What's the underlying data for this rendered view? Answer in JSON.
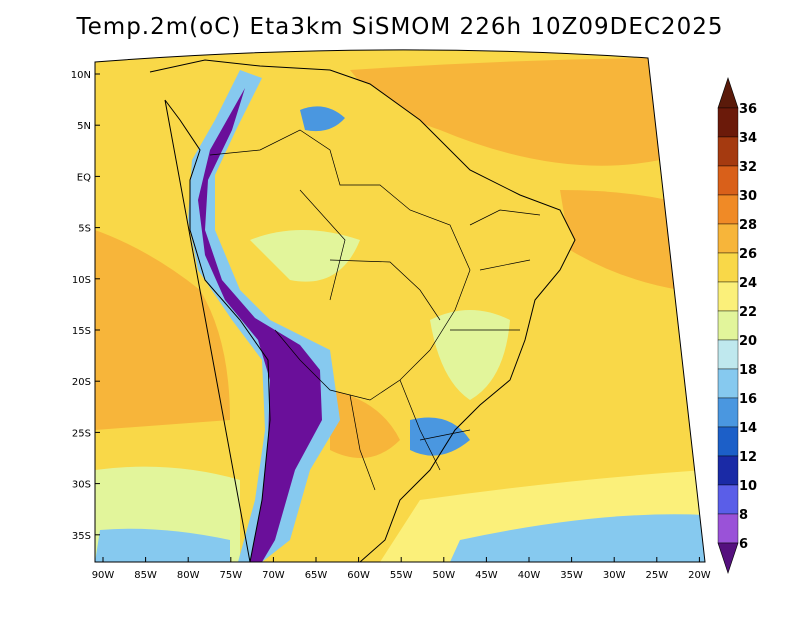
{
  "title": "Temp.2m(oC) Eta3km SiSMOM 226h 10Z09DEC2025",
  "lat_labels": [
    "10N",
    "5N",
    "EQ",
    "5S",
    "10S",
    "15S",
    "20S",
    "25S",
    "30S",
    "35S"
  ],
  "lon_labels": [
    "90W",
    "85W",
    "80W",
    "75W",
    "70W",
    "65W",
    "60W",
    "55W",
    "50W",
    "45W",
    "40W",
    "35W",
    "30W",
    "25W",
    "20W"
  ],
  "colorbar": {
    "labels": [
      "36",
      "34",
      "32",
      "30",
      "28",
      "26",
      "24",
      "22",
      "20",
      "18",
      "16",
      "14",
      "12",
      "10",
      "8",
      "6"
    ],
    "colors": [
      "#6b1a0a",
      "#a53a10",
      "#d9601a",
      "#f08a26",
      "#f7b53a",
      "#f9d848",
      "#fbf07a",
      "#e2f59b",
      "#bfe8ee",
      "#86c9ef",
      "#4a97e0",
      "#1c5fc8",
      "#1a2aa6",
      "#5a5ee8",
      "#9a52d8",
      "#6a0f9a"
    ],
    "top_cap": "#5a1a0a",
    "bottom_cap": "#55107e"
  },
  "field_colors": {
    "ocean_warm": "#f7b53a",
    "ocean_mild": "#f9d848",
    "ocean_pale": "#fbf07a",
    "ocean_cool": "#e2f59b",
    "ocean_cold": "#86c9ef",
    "ocean_colder": "#4a97e0",
    "land_base": "#f9d848",
    "land_light": "#e2f59b",
    "andes_cold": "#6a0f9a",
    "andes_mid": "#86c9ef"
  }
}
